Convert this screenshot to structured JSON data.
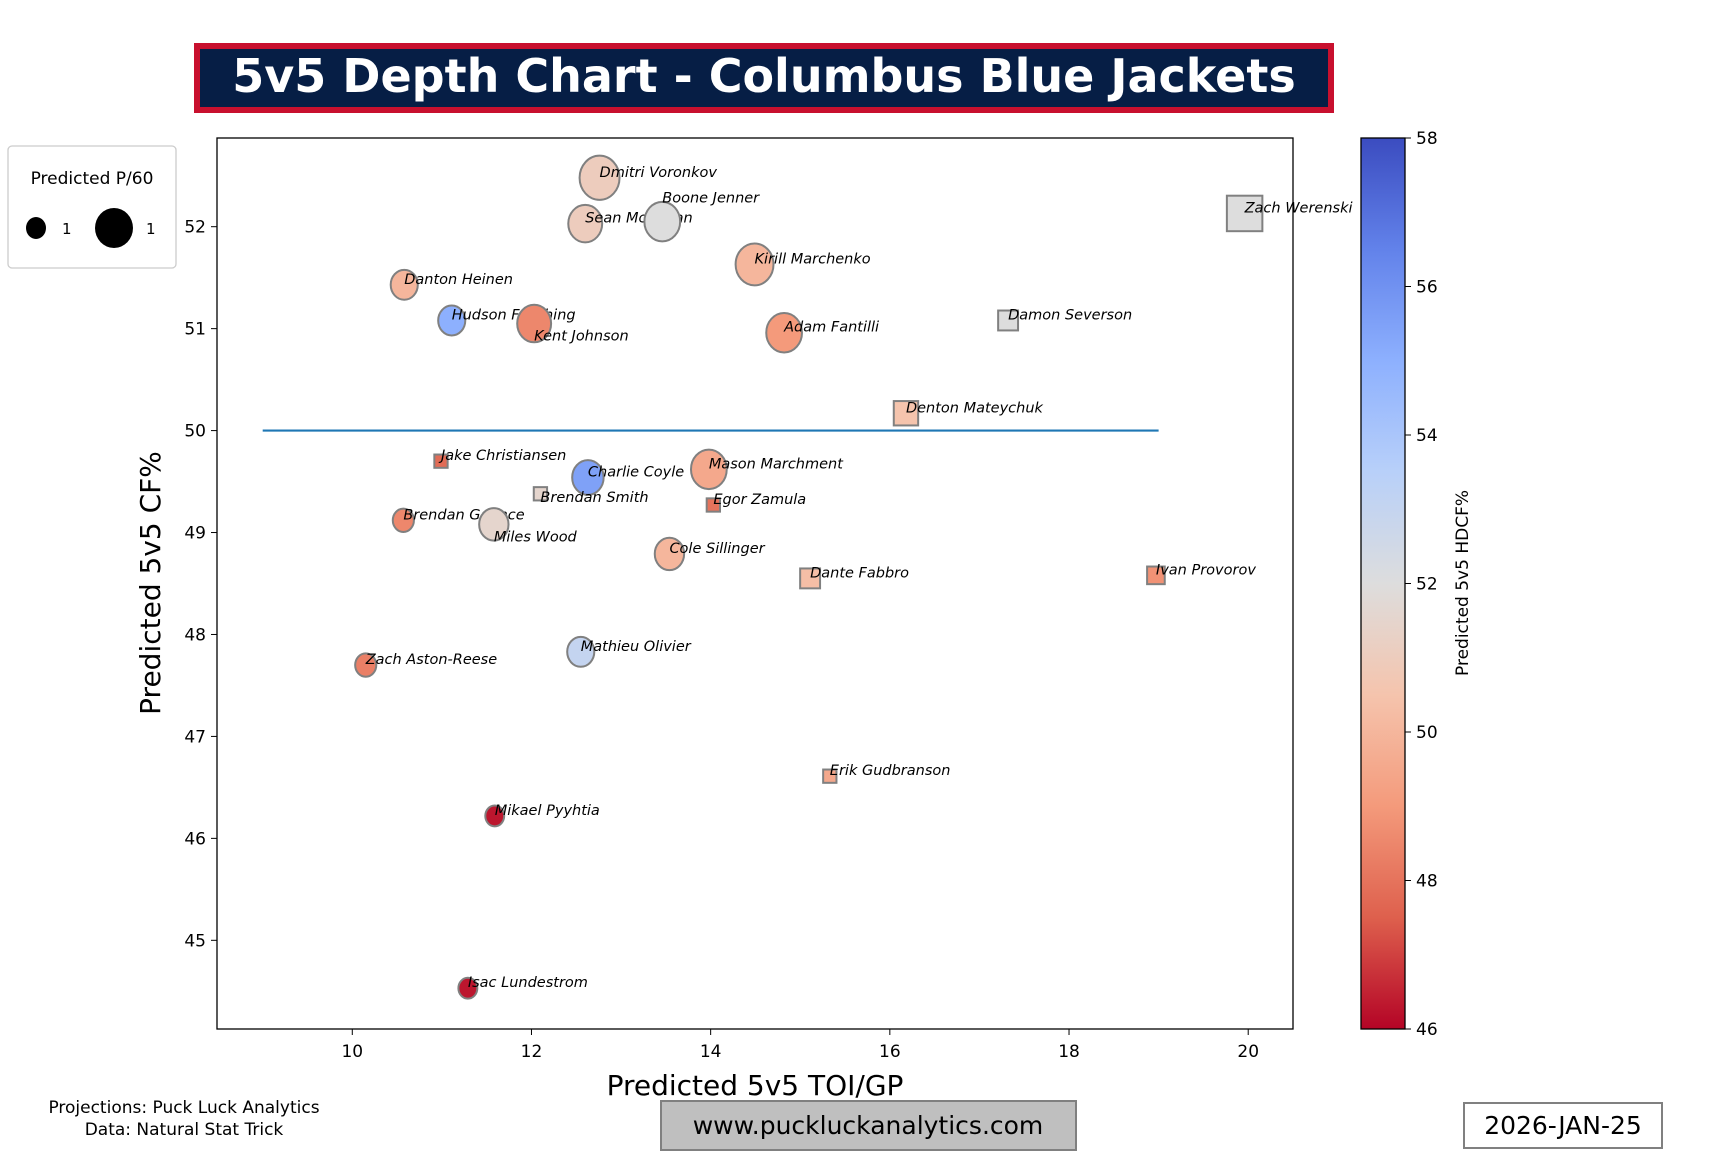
{
  "title": "5v5 Depth Chart - Columbus Blue Jackets",
  "colors": {
    "title_bg": "#061e45",
    "title_border": "#c8102e",
    "ref_line": "#1f77b4",
    "marker_edge": "#808080"
  },
  "footer": {
    "credit_line1": "Projections: Puck Luck Analytics",
    "credit_line2": "Data: Natural Stat Trick",
    "website": "www.puckluckanalytics.com",
    "date": "2026-JAN-25"
  },
  "chart_data": {
    "type": "scatter",
    "xlabel": "Predicted 5v5 TOI/GP",
    "ylabel": "Predicted 5v5 CF%",
    "xlim": [
      8.49,
      20.5
    ],
    "ylim": [
      44.13,
      52.87
    ],
    "xticks": [
      10,
      12,
      14,
      16,
      18,
      20
    ],
    "yticks": [
      45,
      46,
      47,
      48,
      49,
      50,
      51,
      52
    ],
    "grid": false,
    "reference_line": {
      "y": 50,
      "x_from": 9,
      "x_to": 19
    },
    "size_legend": {
      "title": "Predicted P/60",
      "entries": [
        "1",
        "1"
      ],
      "placement": "top-left"
    },
    "colorbar": {
      "label": "Predicted 5v5 HDCF%",
      "range": [
        46,
        58
      ],
      "ticks": [
        46,
        48,
        50,
        52,
        54,
        56,
        58
      ],
      "colormap": "coolwarm_r"
    },
    "points": [
      {
        "name": "Dmitri Voronkov",
        "pos": "F",
        "toi": 12.76,
        "cf": 52.48,
        "hdcf": 51.0,
        "p60": 2.5
      },
      {
        "name": "Sean Monahan",
        "pos": "F",
        "toi": 12.6,
        "cf": 52.03,
        "hdcf": 51.0,
        "p60": 1.8
      },
      {
        "name": "Boone Jenner",
        "pos": "F",
        "toi": 13.46,
        "cf": 52.05,
        "hdcf": 52.0,
        "p60": 2.0
      },
      {
        "name": "Kirill Marchenko",
        "pos": "F",
        "toi": 14.49,
        "cf": 51.63,
        "hdcf": 50.0,
        "p60": 2.25
      },
      {
        "name": "Danton Heinen",
        "pos": "F",
        "toi": 10.58,
        "cf": 51.43,
        "hdcf": 50.0,
        "p60": 1.15
      },
      {
        "name": "Hudson Fasching",
        "pos": "F",
        "toi": 11.11,
        "cf": 51.08,
        "hdcf": 55.0,
        "p60": 1.15
      },
      {
        "name": "Kent Johnson",
        "pos": "F",
        "toi": 12.03,
        "cf": 51.05,
        "hdcf": 48.5,
        "p60": 1.8
      },
      {
        "name": "Adam Fantilli",
        "pos": "F",
        "toi": 14.82,
        "cf": 50.96,
        "hdcf": 49.0,
        "p60": 2.0
      },
      {
        "name": "Zach Werenski",
        "pos": "D",
        "toi": 19.96,
        "cf": 52.13,
        "hdcf": 52.0,
        "p60": 1.78
      },
      {
        "name": "Damon Severson",
        "pos": "D",
        "toi": 17.32,
        "cf": 51.08,
        "hdcf": 52.0,
        "p60": 0.56
      },
      {
        "name": "Denton Mateychuk",
        "pos": "D",
        "toi": 16.18,
        "cf": 50.17,
        "hdcf": 50.5,
        "p60": 0.84
      },
      {
        "name": "Jake Christiansen",
        "pos": "D",
        "toi": 10.99,
        "cf": 49.7,
        "hdcf": 47.8,
        "p60": 0.25
      },
      {
        "name": "Charlie Coyle",
        "pos": "F",
        "toi": 12.63,
        "cf": 49.54,
        "hdcf": 55.5,
        "p60": 1.55
      },
      {
        "name": "Mason Marchment",
        "pos": "F",
        "toi": 13.98,
        "cf": 49.62,
        "hdcf": 49.5,
        "p60": 2.0
      },
      {
        "name": "Brendan Smith",
        "pos": "D",
        "toi": 12.1,
        "cf": 49.38,
        "hdcf": 51.5,
        "p60": 0.25
      },
      {
        "name": "Egor Zamula",
        "pos": "D",
        "toi": 14.03,
        "cf": 49.27,
        "hdcf": 48.0,
        "p60": 0.25
      },
      {
        "name": "Brendan Gaunce",
        "pos": "F",
        "toi": 10.57,
        "cf": 49.12,
        "hdcf": 48.5,
        "p60": 0.7
      },
      {
        "name": "Miles Wood",
        "pos": "F",
        "toi": 11.58,
        "cf": 49.08,
        "hdcf": 51.5,
        "p60": 1.35
      },
      {
        "name": "Cole Sillinger",
        "pos": "F",
        "toi": 13.54,
        "cf": 48.79,
        "hdcf": 50.0,
        "p60": 1.35
      },
      {
        "name": "Dante Fabbro",
        "pos": "D",
        "toi": 15.11,
        "cf": 48.55,
        "hdcf": 50.3,
        "p60": 0.56
      },
      {
        "name": "Ivan Provorov",
        "pos": "D",
        "toi": 18.97,
        "cf": 48.58,
        "hdcf": 48.8,
        "p60": 0.44
      },
      {
        "name": "Mathieu Olivier",
        "pos": "F",
        "toi": 12.55,
        "cf": 47.83,
        "hdcf": 53.0,
        "p60": 1.15
      },
      {
        "name": "Zach Aston-Reese",
        "pos": "F",
        "toi": 10.15,
        "cf": 47.7,
        "hdcf": 48.3,
        "p60": 0.7
      },
      {
        "name": "Erik Gudbranson",
        "pos": "D",
        "toi": 15.33,
        "cf": 46.61,
        "hdcf": 49.5,
        "p60": 0.25
      },
      {
        "name": "Mikael Pyyhtia",
        "pos": "F",
        "toi": 11.59,
        "cf": 46.22,
        "hdcf": 46.3,
        "p60": 0.56
      },
      {
        "name": "Isac Lundestrom",
        "pos": "F",
        "toi": 11.29,
        "cf": 44.53,
        "hdcf": 46.3,
        "p60": 0.56
      }
    ]
  }
}
